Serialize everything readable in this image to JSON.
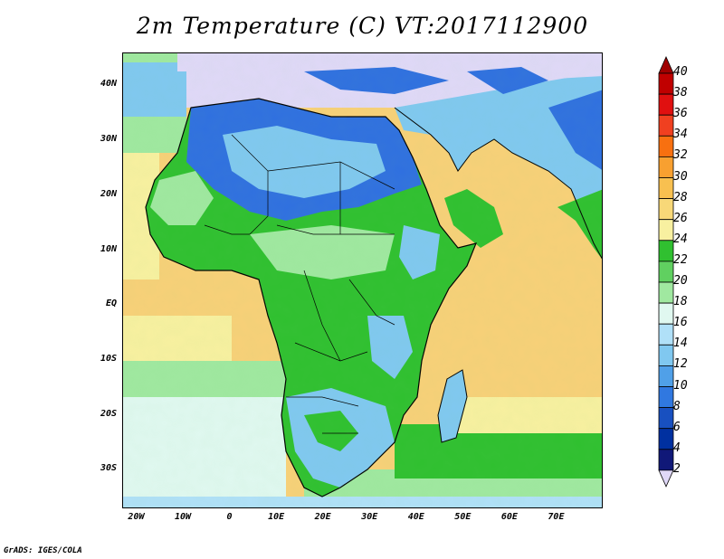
{
  "title": "2m Temperature (C) VT:2017112900",
  "credit": "GrADS: IGES/COLA",
  "map": {
    "lon_range": [
      -23,
      80
    ],
    "lat_range": [
      -37,
      46
    ],
    "lat_ticks": [
      {
        "value": 40,
        "label": "40N"
      },
      {
        "value": 30,
        "label": "30N"
      },
      {
        "value": 20,
        "label": "20N"
      },
      {
        "value": 10,
        "label": "10N"
      },
      {
        "value": 0,
        "label": "EQ"
      },
      {
        "value": -10,
        "label": "10S"
      },
      {
        "value": -20,
        "label": "20S"
      },
      {
        "value": -30,
        "label": "30S"
      }
    ],
    "lon_ticks": [
      {
        "value": -20,
        "label": "20W"
      },
      {
        "value": -10,
        "label": "10W"
      },
      {
        "value": 0,
        "label": "0"
      },
      {
        "value": 10,
        "label": "10E"
      },
      {
        "value": 20,
        "label": "20E"
      },
      {
        "value": 30,
        "label": "30E"
      },
      {
        "value": 40,
        "label": "40E"
      },
      {
        "value": 50,
        "label": "50E"
      },
      {
        "value": 60,
        "label": "60E"
      },
      {
        "value": 70,
        "label": "70E"
      }
    ]
  },
  "colorbar": {
    "levels": [
      "40",
      "38",
      "36",
      "34",
      "32",
      "30",
      "28",
      "26",
      "24",
      "22",
      "20",
      "18",
      "16",
      "14",
      "12",
      "10",
      "8",
      "6",
      "4",
      "2"
    ],
    "colors": [
      "#a00000",
      "#c00000",
      "#e01010",
      "#f04020",
      "#f87010",
      "#f8a030",
      "#f8c050",
      "#f8d878",
      "#f8f0a0",
      "#30c030",
      "#60d060",
      "#a0e8a0",
      "#e0f8f0",
      "#b0e0f8",
      "#80c8f0",
      "#50a0e8",
      "#3078e0",
      "#1850c0",
      "#0030a0",
      "#101878",
      "#e0d8f8"
    ]
  },
  "colors": {
    "warm_ocean": "#f8d080",
    "hot_ocean": "#f8c070",
    "cool_ocean_yellow": "#f8f0a0",
    "green": "#30c030",
    "light_green": "#a0e8a0",
    "pale": "#e0f8f0",
    "light_blue": "#80c8f0",
    "blue": "#3070e0",
    "lavender": "#e0d8f8"
  }
}
